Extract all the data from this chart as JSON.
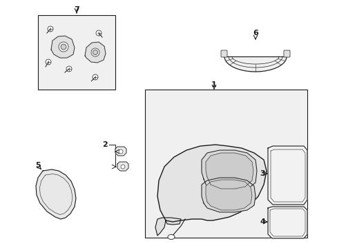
{
  "bg_color": "#ffffff",
  "line_color": "#1a1a1a",
  "gray_fill": "#ebebeb",
  "dark_gray": "#c8c8c8",
  "component_lw": 0.7
}
